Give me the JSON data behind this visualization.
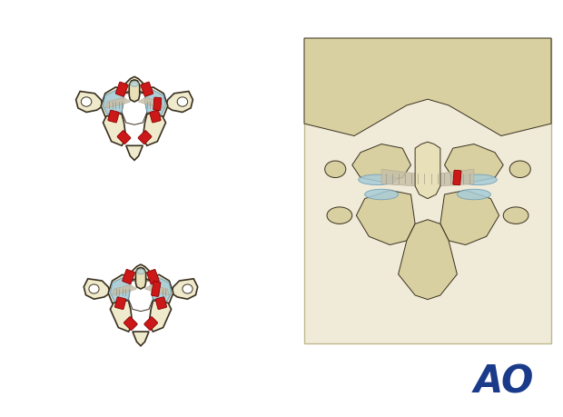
{
  "background_color": "#ffffff",
  "bone_color": "#f0eacc",
  "bone_mid": "#e8e0b8",
  "bone_dark": "#d8d0a0",
  "bone_outline": "#3a3020",
  "cartilage_color": "#a8ccd8",
  "cartilage_outline": "#6898b0",
  "injury_color": "#cc1818",
  "ligament_color": "#c8c0a8",
  "ligament_dark": "#b0a890",
  "ao_color": "#1a3a8a",
  "ao_text": "AO",
  "fig_width": 6.2,
  "fig_height": 4.59,
  "dpi": 100
}
